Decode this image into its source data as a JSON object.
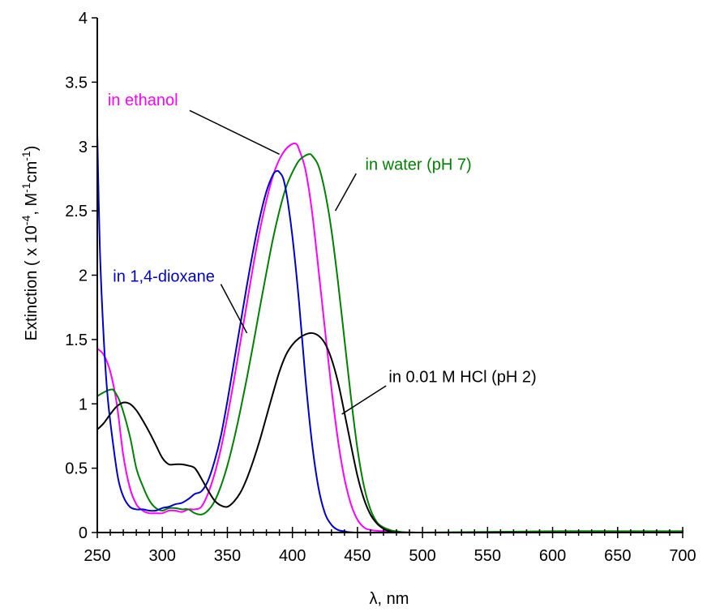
{
  "chart_data": {
    "type": "line",
    "title": "",
    "xlabel": "λ, nm",
    "ylabel_parts": {
      "prefix": "Extinction ( x 10",
      "exp1": "-4",
      "mid": ", M",
      "exp2": "-1",
      "unit": "cm",
      "exp3": "-1",
      "suffix": ")"
    },
    "xlim": [
      250,
      700
    ],
    "ylim": [
      0,
      4
    ],
    "x_ticks": [
      250,
      300,
      350,
      400,
      450,
      500,
      550,
      600,
      650,
      700
    ],
    "y_ticks": [
      0,
      0.5,
      1,
      1.5,
      2,
      2.5,
      3,
      3.5,
      4
    ],
    "y_tick_labels": [
      "0",
      "0.5",
      "1",
      "1.5",
      "2",
      "2.5",
      "3",
      "3.5",
      "4"
    ],
    "x_minor_step": 10,
    "grid": false,
    "legend": "none",
    "series": [
      {
        "name": "in ethanol",
        "color": "#ff00ff",
        "points": [
          [
            250,
            1.43
          ],
          [
            255,
            1.38
          ],
          [
            260,
            1.25
          ],
          [
            265,
            1.0
          ],
          [
            270,
            0.6
          ],
          [
            275,
            0.35
          ],
          [
            280,
            0.22
          ],
          [
            285,
            0.17
          ],
          [
            290,
            0.15
          ],
          [
            295,
            0.15
          ],
          [
            300,
            0.15
          ],
          [
            305,
            0.17
          ],
          [
            310,
            0.17
          ],
          [
            315,
            0.16
          ],
          [
            320,
            0.18
          ],
          [
            325,
            0.18
          ],
          [
            330,
            0.2
          ],
          [
            335,
            0.3
          ],
          [
            340,
            0.45
          ],
          [
            345,
            0.65
          ],
          [
            350,
            0.9
          ],
          [
            355,
            1.18
          ],
          [
            360,
            1.48
          ],
          [
            365,
            1.78
          ],
          [
            370,
            2.08
          ],
          [
            375,
            2.35
          ],
          [
            380,
            2.58
          ],
          [
            385,
            2.77
          ],
          [
            390,
            2.9
          ],
          [
            395,
            2.98
          ],
          [
            400,
            3.02
          ],
          [
            403,
            3.02
          ],
          [
            405,
            2.98
          ],
          [
            410,
            2.82
          ],
          [
            415,
            2.5
          ],
          [
            420,
            2.05
          ],
          [
            425,
            1.58
          ],
          [
            430,
            1.12
          ],
          [
            435,
            0.72
          ],
          [
            440,
            0.42
          ],
          [
            445,
            0.22
          ],
          [
            450,
            0.1
          ],
          [
            455,
            0.04
          ],
          [
            460,
            0.02
          ],
          [
            470,
            0.01
          ],
          [
            500,
            0.0
          ],
          [
            600,
            0.0
          ],
          [
            700,
            0.01
          ]
        ]
      },
      {
        "name": "in water (pH 7)",
        "color": "#008000",
        "points": [
          [
            250,
            1.06
          ],
          [
            255,
            1.09
          ],
          [
            260,
            1.11
          ],
          [
            263,
            1.1
          ],
          [
            268,
            1.0
          ],
          [
            275,
            0.75
          ],
          [
            280,
            0.5
          ],
          [
            285,
            0.36
          ],
          [
            290,
            0.25
          ],
          [
            295,
            0.19
          ],
          [
            300,
            0.17
          ],
          [
            305,
            0.19
          ],
          [
            310,
            0.19
          ],
          [
            315,
            0.18
          ],
          [
            320,
            0.18
          ],
          [
            325,
            0.15
          ],
          [
            330,
            0.14
          ],
          [
            335,
            0.17
          ],
          [
            340,
            0.24
          ],
          [
            345,
            0.36
          ],
          [
            350,
            0.52
          ],
          [
            355,
            0.72
          ],
          [
            360,
            0.95
          ],
          [
            365,
            1.2
          ],
          [
            370,
            1.47
          ],
          [
            375,
            1.75
          ],
          [
            380,
            2.02
          ],
          [
            385,
            2.28
          ],
          [
            390,
            2.5
          ],
          [
            395,
            2.68
          ],
          [
            400,
            2.8
          ],
          [
            405,
            2.89
          ],
          [
            410,
            2.93
          ],
          [
            413,
            2.94
          ],
          [
            415,
            2.93
          ],
          [
            420,
            2.85
          ],
          [
            425,
            2.65
          ],
          [
            430,
            2.35
          ],
          [
            435,
            1.95
          ],
          [
            440,
            1.5
          ],
          [
            445,
            1.05
          ],
          [
            450,
            0.65
          ],
          [
            455,
            0.36
          ],
          [
            460,
            0.18
          ],
          [
            465,
            0.08
          ],
          [
            470,
            0.04
          ],
          [
            475,
            0.02
          ],
          [
            480,
            0.01
          ],
          [
            500,
            0.0
          ],
          [
            600,
            0.01
          ],
          [
            700,
            0.01
          ]
        ]
      },
      {
        "name": "in 1,4-dioxane",
        "color": "#0000cd",
        "points": [
          [
            250,
            3.1
          ],
          [
            252,
            2.2
          ],
          [
            255,
            1.5
          ],
          [
            258,
            1.05
          ],
          [
            262,
            0.7
          ],
          [
            266,
            0.42
          ],
          [
            270,
            0.28
          ],
          [
            275,
            0.2
          ],
          [
            280,
            0.18
          ],
          [
            285,
            0.18
          ],
          [
            290,
            0.17
          ],
          [
            295,
            0.17
          ],
          [
            300,
            0.19
          ],
          [
            305,
            0.2
          ],
          [
            310,
            0.22
          ],
          [
            315,
            0.23
          ],
          [
            320,
            0.26
          ],
          [
            325,
            0.3
          ],
          [
            330,
            0.32
          ],
          [
            335,
            0.4
          ],
          [
            340,
            0.55
          ],
          [
            345,
            0.75
          ],
          [
            350,
            1.02
          ],
          [
            355,
            1.32
          ],
          [
            360,
            1.62
          ],
          [
            365,
            1.92
          ],
          [
            370,
            2.2
          ],
          [
            375,
            2.45
          ],
          [
            380,
            2.65
          ],
          [
            385,
            2.78
          ],
          [
            388,
            2.81
          ],
          [
            390,
            2.8
          ],
          [
            393,
            2.75
          ],
          [
            396,
            2.6
          ],
          [
            400,
            2.3
          ],
          [
            405,
            1.8
          ],
          [
            410,
            1.2
          ],
          [
            415,
            0.7
          ],
          [
            420,
            0.35
          ],
          [
            425,
            0.15
          ],
          [
            430,
            0.06
          ],
          [
            435,
            0.02
          ],
          [
            440,
            0.01
          ],
          [
            450,
            0.0
          ],
          [
            500,
            0.0
          ],
          [
            600,
            0.0
          ],
          [
            700,
            0.0
          ]
        ]
      },
      {
        "name": "in 0.01 M HCl  (pH 2)",
        "color": "#000000",
        "points": [
          [
            250,
            0.8
          ],
          [
            255,
            0.85
          ],
          [
            260,
            0.92
          ],
          [
            265,
            0.98
          ],
          [
            270,
            1.01
          ],
          [
            275,
            1.0
          ],
          [
            280,
            0.95
          ],
          [
            285,
            0.87
          ],
          [
            290,
            0.78
          ],
          [
            295,
            0.68
          ],
          [
            300,
            0.58
          ],
          [
            305,
            0.53
          ],
          [
            310,
            0.53
          ],
          [
            315,
            0.53
          ],
          [
            320,
            0.52
          ],
          [
            325,
            0.5
          ],
          [
            330,
            0.42
          ],
          [
            335,
            0.33
          ],
          [
            340,
            0.25
          ],
          [
            345,
            0.21
          ],
          [
            350,
            0.2
          ],
          [
            355,
            0.24
          ],
          [
            360,
            0.31
          ],
          [
            365,
            0.42
          ],
          [
            370,
            0.56
          ],
          [
            375,
            0.72
          ],
          [
            380,
            0.9
          ],
          [
            385,
            1.08
          ],
          [
            390,
            1.25
          ],
          [
            395,
            1.38
          ],
          [
            400,
            1.46
          ],
          [
            405,
            1.51
          ],
          [
            410,
            1.54
          ],
          [
            415,
            1.55
          ],
          [
            420,
            1.53
          ],
          [
            425,
            1.47
          ],
          [
            430,
            1.35
          ],
          [
            435,
            1.17
          ],
          [
            440,
            0.93
          ],
          [
            445,
            0.68
          ],
          [
            450,
            0.44
          ],
          [
            455,
            0.26
          ],
          [
            460,
            0.14
          ],
          [
            465,
            0.07
          ],
          [
            470,
            0.03
          ],
          [
            475,
            0.01
          ],
          [
            490,
            0.0
          ],
          [
            600,
            0.0
          ],
          [
            700,
            0.0
          ]
        ]
      }
    ],
    "annotations": [
      {
        "text": "in ethanol",
        "color": "#ff00ff",
        "anchor_data": [
          321,
          3.28
        ],
        "target_data": [
          390,
          2.94
        ],
        "label_data": [
          258,
          3.32
        ]
      },
      {
        "text": "in water (pH 7)",
        "color": "#008000",
        "anchor_data": [
          449,
          2.79
        ],
        "target_data": [
          433,
          2.5
        ],
        "label_data": [
          456,
          2.82
        ]
      },
      {
        "text": "in 1,4-dioxane",
        "color": "#0000cd",
        "anchor_data": [
          345,
          1.93
        ],
        "target_data": [
          365,
          1.55
        ],
        "label_data": [
          262,
          1.95
        ]
      },
      {
        "text": "in 0.01 M HCl  (pH 2)",
        "color": "#000000",
        "anchor_data": [
          472,
          1.14
        ],
        "target_data": [
          438,
          0.92
        ],
        "label_data": [
          474,
          1.17
        ]
      }
    ]
  }
}
